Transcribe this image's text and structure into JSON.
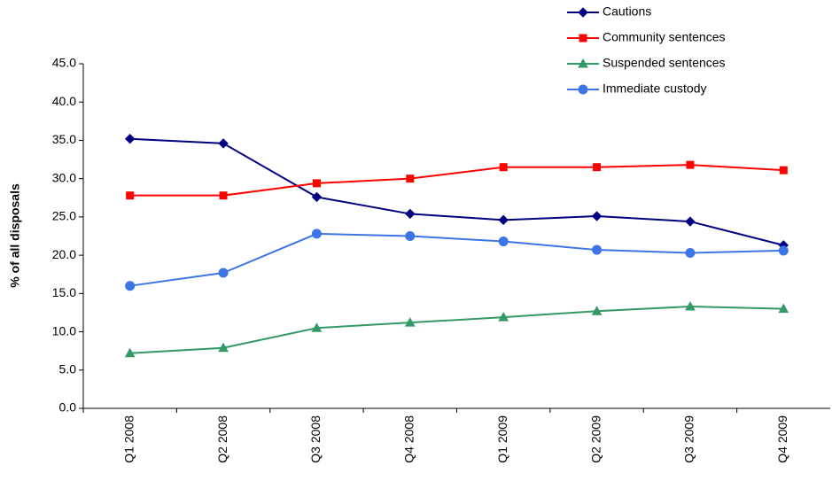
{
  "chart_data": {
    "type": "line",
    "y_label": "% of all disposals",
    "categories": [
      "Q1 2008",
      "Q2 2008",
      "Q3 2008",
      "Q4 2008",
      "Q1 2009",
      "Q2 2009",
      "Q3 2009",
      "Q4 2009"
    ],
    "series": [
      {
        "name": "Cautions",
        "color": "#000080",
        "marker": "diamond",
        "values": [
          35.2,
          34.6,
          27.6,
          25.4,
          24.6,
          25.1,
          24.4,
          21.3
        ]
      },
      {
        "name": "Community sentences",
        "color": "#ff0000",
        "marker": "square",
        "values": [
          27.8,
          27.8,
          29.4,
          30.0,
          31.5,
          31.5,
          31.8,
          31.1
        ]
      },
      {
        "name": "Suspended sentences",
        "color": "#339966",
        "marker": "triangle",
        "values": [
          7.2,
          7.9,
          10.5,
          11.2,
          11.9,
          12.7,
          13.3,
          13.0
        ]
      },
      {
        "name": "Immediate custody",
        "color": "#3d75e6",
        "marker": "circle",
        "values": [
          16.0,
          17.7,
          22.8,
          22.5,
          21.8,
          20.7,
          20.3,
          20.6
        ]
      }
    ],
    "ylim": [
      0,
      45
    ],
    "yticks": [
      {
        "value": 0,
        "label": "0.0"
      },
      {
        "value": 5,
        "label": "5.0"
      },
      {
        "value": 10,
        "label": "10.0"
      },
      {
        "value": 15,
        "label": "15.0"
      },
      {
        "value": 20,
        "label": "20.0"
      },
      {
        "value": 25,
        "label": "25.0"
      },
      {
        "value": 30,
        "label": "30.0"
      },
      {
        "value": 35,
        "label": "35.0"
      },
      {
        "value": 40,
        "label": "40.0"
      },
      {
        "value": 45,
        "label": "45.0"
      }
    ],
    "grid": false,
    "legend": "top-right"
  }
}
